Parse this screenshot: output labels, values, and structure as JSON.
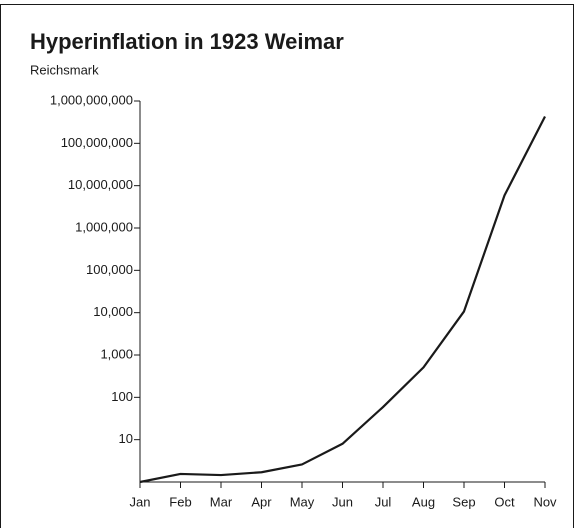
{
  "chart_data": {
    "type": "line",
    "title": "Hyperinflation in 1923 Weimar",
    "subtitle": "Reichsmark",
    "categories": [
      "Jan",
      "Feb",
      "Mar",
      "Apr",
      "May",
      "Jun",
      "Jul",
      "Aug",
      "Sep",
      "Oct",
      "Nov"
    ],
    "series": [
      {
        "name": "Reichsmark",
        "color": "#1a1a1a",
        "values": [
          1,
          1.55,
          1.46,
          1.7,
          2.6,
          8,
          59,
          510,
          10700,
          5900000,
          430000000
        ]
      }
    ],
    "log_scale": true,
    "ylim": [
      1,
      1000000000
    ],
    "yticks": [
      10,
      100,
      {
        "value": 1000,
        "label": "1,000"
      },
      {
        "value": 10000,
        "label": "10,000"
      },
      {
        "value": 100000,
        "label": "100,000"
      },
      {
        "value": 1000000,
        "label": "1,000,000"
      },
      {
        "value": 10000000,
        "label": "10,000,000"
      },
      {
        "value": 100000000,
        "label": "100,000,000"
      },
      {
        "value": 1000000000,
        "label": "1,000,000,000"
      }
    ],
    "grid": false
  }
}
